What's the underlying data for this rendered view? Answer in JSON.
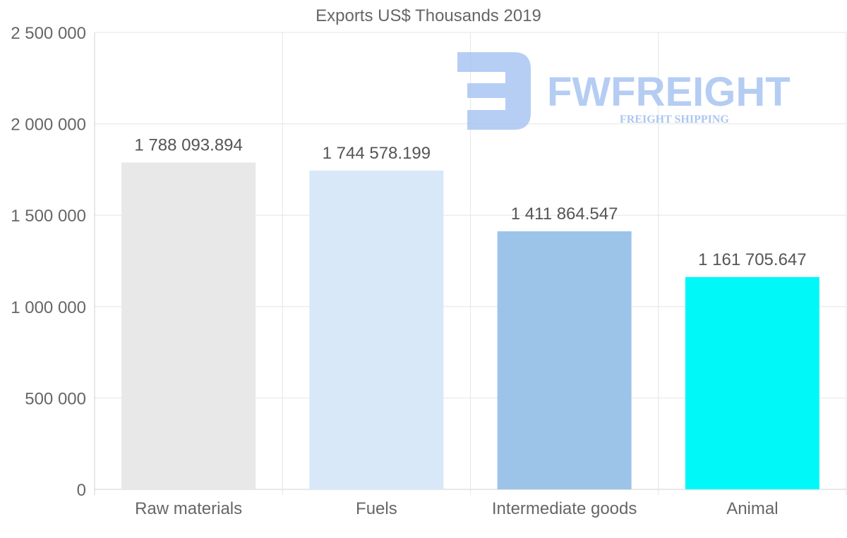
{
  "watermark": {
    "brand": "FWFREIGHT",
    "tagline": "FREIGHT SHIPPING",
    "color": "#9dbdf0"
  },
  "chart_data": {
    "type": "bar",
    "title": "Exports US$ Thousands 2019",
    "xlabel": "",
    "ylabel": "",
    "ylim": [
      0,
      2500000
    ],
    "yticks": [
      0,
      500000,
      1000000,
      1500000,
      2000000,
      2500000
    ],
    "ytick_labels": [
      "0",
      "500 000",
      "1 000 000",
      "1 500 000",
      "2 000 000",
      "2 500 000"
    ],
    "grid": true,
    "categories": [
      "Raw materials",
      "Fuels",
      "Intermediate goods",
      "Animal"
    ],
    "values": [
      1788093.894,
      1744578.199,
      1411864.547,
      1161705.647
    ],
    "value_labels": [
      "1 788 093.894",
      "1 744 578.199",
      "1 411 864.547",
      "1 161 705.647"
    ],
    "colors": [
      "#e8e8e8",
      "#d8e8f8",
      "#9cc4e8",
      "#00f8f8"
    ]
  }
}
